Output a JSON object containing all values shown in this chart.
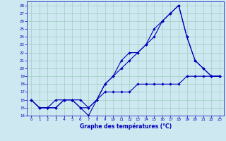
{
  "xlabel": "Graphe des températures (°C)",
  "background_color": "#cde8f0",
  "grid_color": "#a0cfc0",
  "line_color": "#0000bb",
  "xlim": [
    -0.5,
    23.5
  ],
  "ylim": [
    14,
    28.5
  ],
  "xticks": [
    0,
    1,
    2,
    3,
    4,
    5,
    6,
    7,
    8,
    9,
    10,
    11,
    12,
    13,
    14,
    15,
    16,
    17,
    18,
    19,
    20,
    21,
    22,
    23
  ],
  "yticks": [
    14,
    15,
    16,
    17,
    18,
    19,
    20,
    21,
    22,
    23,
    24,
    25,
    26,
    27,
    28
  ],
  "line1_x": [
    0,
    1,
    2,
    3,
    4,
    5,
    6,
    7,
    8,
    9,
    10,
    11,
    12,
    13,
    14,
    15,
    16,
    17,
    18,
    19,
    20,
    21,
    22,
    23
  ],
  "line1_y": [
    16,
    15,
    15,
    15,
    16,
    16,
    15,
    14,
    16,
    18,
    19,
    20,
    21,
    22,
    23,
    25,
    26,
    27,
    28,
    24,
    21,
    20,
    19,
    19
  ],
  "line2_x": [
    0,
    1,
    2,
    3,
    4,
    5,
    6,
    7,
    8,
    9,
    10,
    11,
    12,
    13,
    14,
    15,
    16,
    17,
    18,
    19,
    20,
    21,
    22,
    23
  ],
  "line2_y": [
    16,
    15,
    15,
    16,
    16,
    16,
    16,
    15,
    16,
    18,
    19,
    21,
    22,
    22,
    23,
    24,
    26,
    27,
    28,
    24,
    21,
    20,
    19,
    19
  ],
  "line3_x": [
    0,
    1,
    2,
    3,
    4,
    5,
    6,
    7,
    8,
    9,
    10,
    11,
    12,
    13,
    14,
    15,
    16,
    17,
    18,
    19,
    20,
    21,
    22,
    23
  ],
  "line3_y": [
    16,
    15,
    15,
    15,
    16,
    16,
    15,
    15,
    16,
    17,
    17,
    17,
    17,
    18,
    18,
    18,
    18,
    18,
    18,
    19,
    19,
    19,
    19,
    19
  ],
  "tick_labelsize": 4.0,
  "xlabel_fontsize": 5.5,
  "linewidth": 0.8,
  "markersize": 2.2
}
